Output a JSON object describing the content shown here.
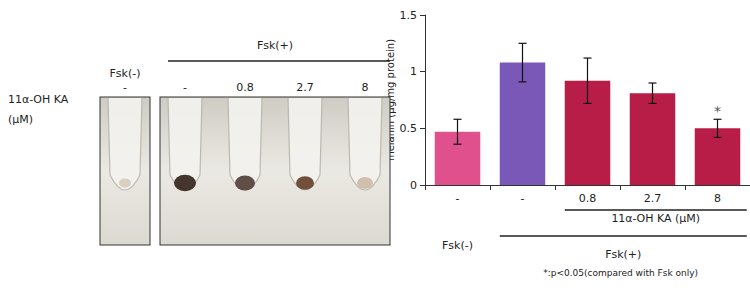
{
  "chart_data": {
    "type": "bar",
    "y_label": "melanin (μg/mg protein)",
    "categories": [
      "-",
      "-",
      "0.8",
      "2.7",
      "8"
    ],
    "values": [
      0.47,
      1.08,
      0.92,
      0.81,
      0.5
    ],
    "errors": [
      0.11,
      0.17,
      0.2,
      0.09,
      0.08
    ],
    "colors": [
      "#e0508c",
      "#7a58b8",
      "#b71d46",
      "#b71d46",
      "#b71d46"
    ],
    "ylim": [
      0,
      1.5
    ],
    "yticks": [
      0,
      0.5,
      1,
      1.5
    ],
    "grid": false,
    "category_groups": [
      {
        "label": "11α-OH KA (μM)",
        "first": 2,
        "last": 4
      },
      {
        "label": "Fsk(-)",
        "first": 0,
        "last": 0
      },
      {
        "label": "Fsk(+)",
        "first": 1,
        "last": 4
      }
    ],
    "annotations": [
      {
        "text": "*",
        "category": 4
      }
    ],
    "footnote": "*:p<0.05(compared with Fsk only)"
  },
  "image_panel": {
    "row_label": [
      "11α-OH KA",
      "(μM)"
    ],
    "group_labels": [
      {
        "label": "Fsk(-)",
        "first": 0,
        "last": 0
      },
      {
        "label": "Fsk(+)",
        "first": 1,
        "last": 4
      }
    ],
    "lane_labels": [
      "-",
      "-",
      "0.8",
      "2.7",
      "8"
    ]
  }
}
